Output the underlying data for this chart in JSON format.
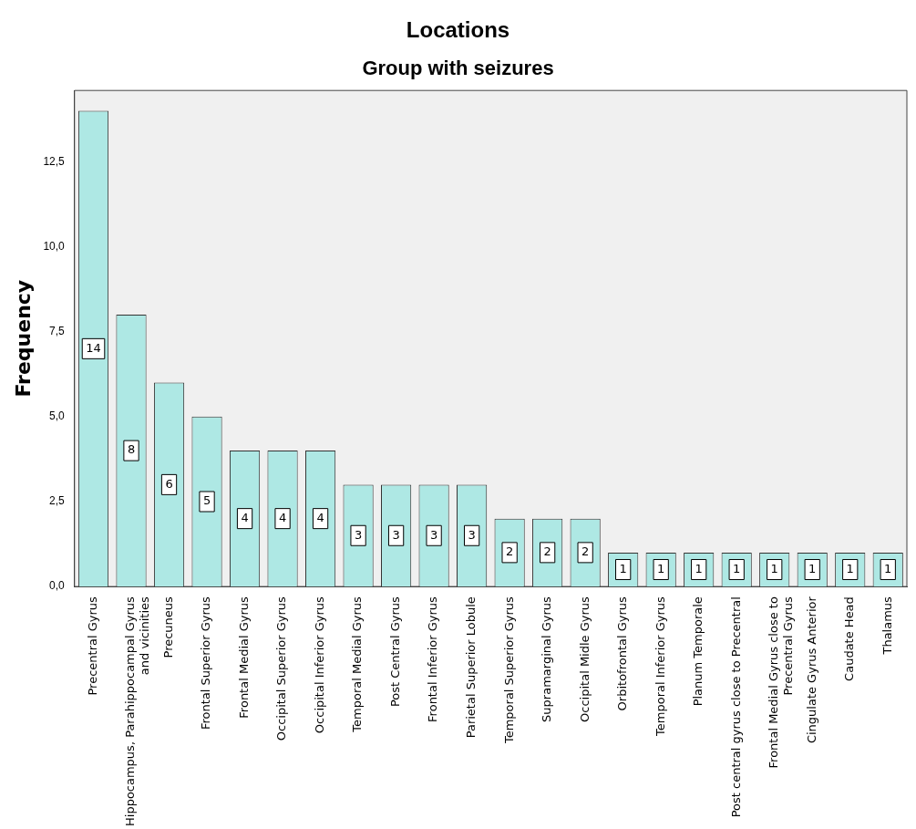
{
  "chart_data": {
    "type": "bar",
    "title": "Locations",
    "subtitle": "Group with seizures",
    "ylabel": "Frequency",
    "categories": [
      "Precentral Gyrus",
      "Hippocampus, Parahippocampal Gyrus and vicinities",
      "Precuneus",
      "Frontal Superior Gyrus",
      "Frontal Medial Gyrus",
      "Occipital Superior Gyrus",
      "Occipital Inferior Gyrus",
      "Temporal Medial Gyrus",
      "Post Central Gyrus",
      "Frontal Inferior Gyrus",
      "Parietal Superior Lobule",
      "Temporal Superior Gyrus",
      "Supramarginal Gyrus",
      "Occipital Midle Gyrus",
      "Orbitofrontal Gyrus",
      "Temporal Inferior Gyrus",
      "Planum Temporale",
      "Post central gyrus close to Precentral",
      "Frontal Medial Gyrus close to Precentral Gyrus",
      "Cingulate Gyrus Anterior",
      "Caudate Head",
      "Thalamus"
    ],
    "values": [
      14,
      8,
      6,
      5,
      4,
      4,
      4,
      3,
      3,
      3,
      3,
      2,
      2,
      2,
      1,
      1,
      1,
      1,
      1,
      1,
      1,
      1
    ],
    "color": "#aee8e4",
    "ylim": [
      0,
      14.6
    ],
    "yticks": [
      {
        "value": 0,
        "label": "0,0"
      },
      {
        "value": 2.5,
        "label": "2,5"
      },
      {
        "value": 5,
        "label": "5,0"
      },
      {
        "value": 7.5,
        "label": "7,5"
      },
      {
        "value": 10,
        "label": "10,0"
      },
      {
        "value": 12.5,
        "label": "12,5"
      }
    ],
    "grid": false,
    "legend": false,
    "data_labels": true
  }
}
